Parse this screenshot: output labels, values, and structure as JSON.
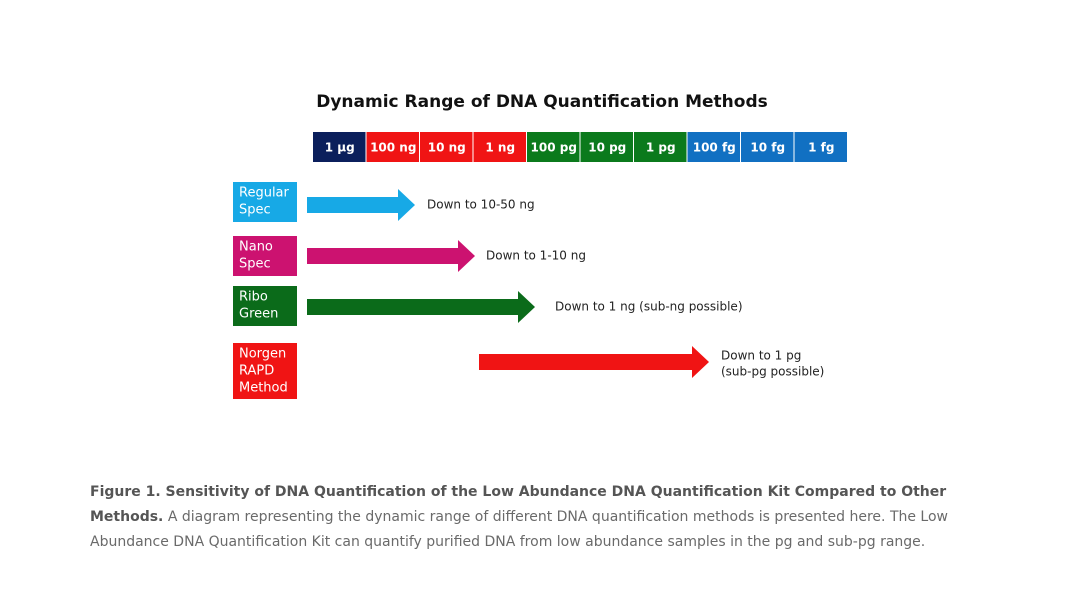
{
  "figure": {
    "title": "Dynamic Range of DNA Quantification Methods",
    "scale": [
      {
        "label": "1 µg",
        "color": "#0b1f5c"
      },
      {
        "label": "100 ng",
        "color": "#f01414"
      },
      {
        "label": "10 ng",
        "color": "#f01414"
      },
      {
        "label": "1 ng",
        "color": "#f01414"
      },
      {
        "label": "100 pg",
        "color": "#0b7a1c"
      },
      {
        "label": "10 pg",
        "color": "#0b7a1c"
      },
      {
        "label": "1 pg",
        "color": "#0b7a1c"
      },
      {
        "label": "100 fg",
        "color": "#1170c2"
      },
      {
        "label": "10 fg",
        "color": "#1170c2"
      },
      {
        "label": "1 fg",
        "color": "#1170c2"
      }
    ],
    "methods": [
      {
        "label": [
          "Regular",
          "Spec"
        ],
        "color": "#17a9e6",
        "result": [
          "Down to 10-50 ng"
        ]
      },
      {
        "label": [
          "Nano",
          "Spec"
        ],
        "color": "#cc1270",
        "result": [
          "Down to 1-10 ng"
        ]
      },
      {
        "label": [
          "Ribo",
          "Green"
        ],
        "color": "#0b6b1a",
        "result": [
          "Down to 1 ng (sub-ng possible)"
        ]
      },
      {
        "label": [
          "Norgen",
          "RAPD",
          "Method"
        ],
        "color": "#f01414",
        "result": [
          "Down to 1 pg",
          "(sub-pg possible)"
        ]
      }
    ]
  },
  "caption": {
    "bold": "Figure 1. Sensitivity of DNA Quantification of the Low Abundance DNA Quantification Kit Compared to Other Methods.",
    "text": "A diagram representing the dynamic range of different DNA quantification methods is presented here. The Low Abundance DNA Quantification Kit can quantify purified DNA from low abundance samples in the pg and sub-pg range."
  }
}
